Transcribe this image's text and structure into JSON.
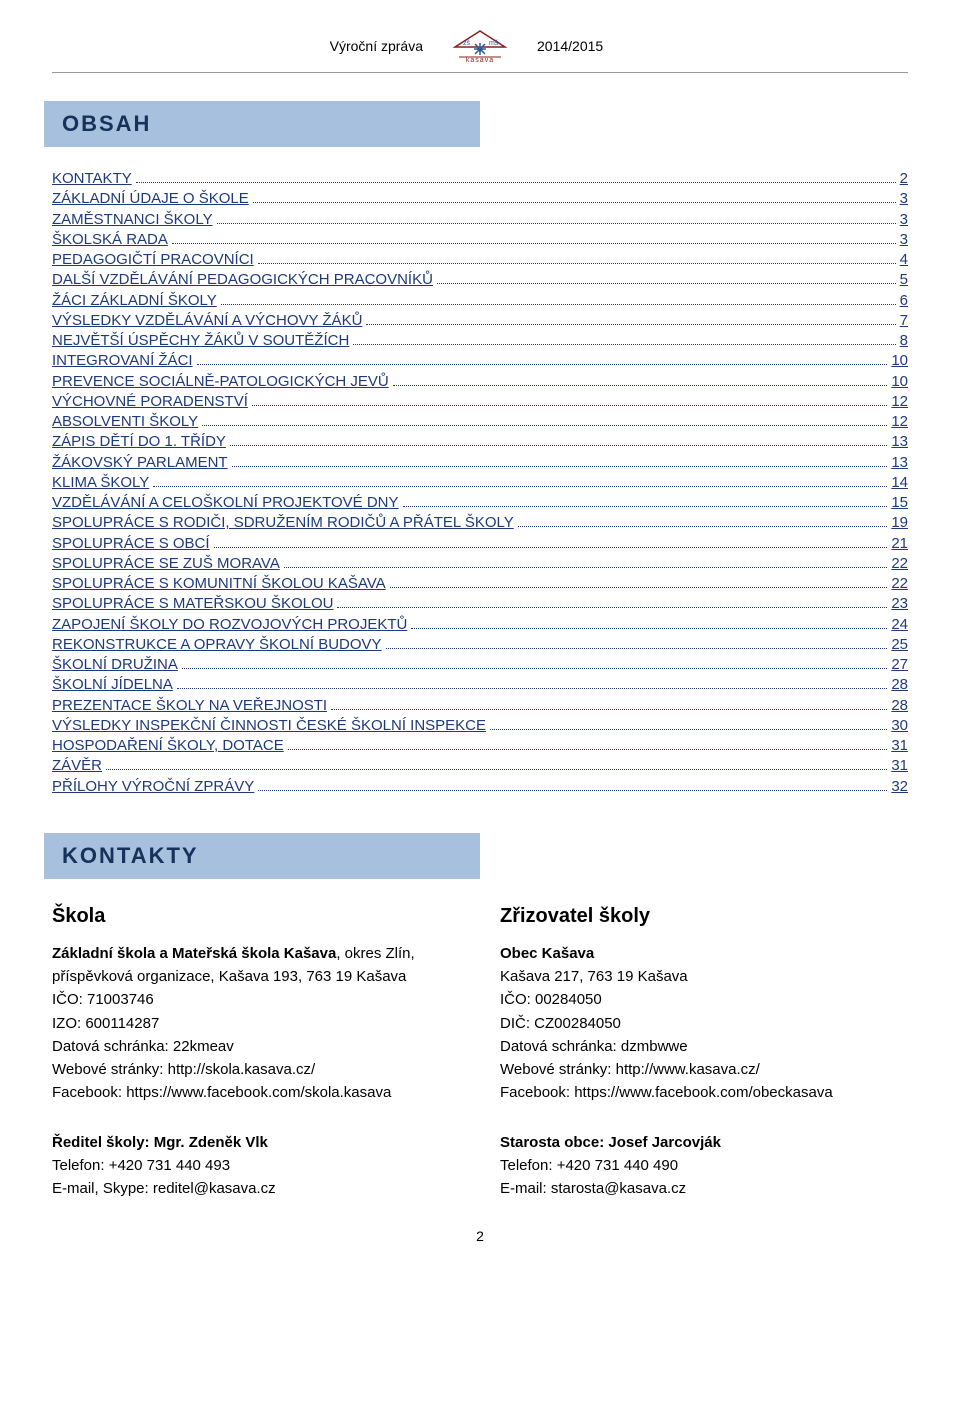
{
  "header": {
    "left": "Výroční zpráva",
    "right": "2014/2015",
    "logo_top": "zš ✶ mš",
    "logo_bottom": "kašava"
  },
  "sections": {
    "obsah_title": "OBSAH",
    "kontakty_title": "KONTAKTY"
  },
  "toc": [
    {
      "label": "KONTAKTY",
      "page": "2"
    },
    {
      "label": "ZÁKLADNÍ ÚDAJE O ŠKOLE",
      "page": "3"
    },
    {
      "label": "ZAMĚSTNANCI ŠKOLY",
      "page": "3"
    },
    {
      "label": "ŠKOLSKÁ RADA",
      "page": "3"
    },
    {
      "label": "PEDAGOGIČTÍ PRACOVNÍCI",
      "page": "4"
    },
    {
      "label": "DALŠÍ VZDĚLÁVÁNÍ PEDAGOGICKÝCH PRACOVNÍKŮ",
      "page": "5"
    },
    {
      "label": "ŽÁCI ZÁKLADNÍ ŠKOLY",
      "page": "6"
    },
    {
      "label": "VÝSLEDKY VZDĚLÁVÁNÍ A VÝCHOVY ŽÁKŮ",
      "page": "7"
    },
    {
      "label": "NEJVĚTŠÍ ÚSPĚCHY ŽÁKŮ V SOUTĚŽÍCH",
      "page": "8"
    },
    {
      "label": "INTEGROVANÍ ŽÁCI",
      "page": "10"
    },
    {
      "label": "PREVENCE SOCIÁLNĚ-PATOLOGICKÝCH JEVŮ",
      "page": "10"
    },
    {
      "label": "VÝCHOVNÉ PORADENSTVÍ",
      "page": "12"
    },
    {
      "label": "ABSOLVENTI ŠKOLY",
      "page": "12"
    },
    {
      "label": "ZÁPIS DĚTÍ DO 1. TŘÍDY",
      "page": "13"
    },
    {
      "label": "ŽÁKOVSKÝ PARLAMENT",
      "page": "13"
    },
    {
      "label": "KLIMA ŠKOLY",
      "page": "14"
    },
    {
      "label": "VZDĚLÁVÁNÍ A CELOŠKOLNÍ PROJEKTOVÉ DNY",
      "page": "15"
    },
    {
      "label": "SPOLUPRÁCE S RODIČI, SDRUŽENÍM RODIČŮ A PŘÁTEL ŠKOLY",
      "page": "19"
    },
    {
      "label": "SPOLUPRÁCE S OBCÍ",
      "page": "21"
    },
    {
      "label": "SPOLUPRÁCE SE ZUŠ MORAVA",
      "page": "22"
    },
    {
      "label": "SPOLUPRÁCE S KOMUNITNÍ ŠKOLOU KAŠAVA",
      "page": "22"
    },
    {
      "label": "SPOLUPRÁCE S MATEŘSKOU ŠKOLOU",
      "page": "23"
    },
    {
      "label": "ZAPOJENÍ ŠKOLY DO ROZVOJOVÝCH PROJEKTŮ",
      "page": "24"
    },
    {
      "label": "REKONSTRUKCE A OPRAVY ŠKOLNÍ BUDOVY",
      "page": "25"
    },
    {
      "label": "ŠKOLNÍ DRUŽINA",
      "page": "27"
    },
    {
      "label": "ŠKOLNÍ JÍDELNA",
      "page": "28"
    },
    {
      "label": "PREZENTACE ŠKOLY NA VEŘEJNOSTI",
      "page": "28"
    },
    {
      "label": "VÝSLEDKY INSPEKČNÍ ČINNOSTI ČESKÉ ŠKOLNÍ INSPEKCE",
      "page": "30"
    },
    {
      "label": "HOSPODAŘENÍ ŠKOLY, DOTACE",
      "page": "31"
    },
    {
      "label": "ZÁVĚR",
      "page": "31"
    },
    {
      "label": "PŘÍLOHY VÝROČNÍ ZPRÁVY",
      "page": "32"
    }
  ],
  "kontakt": {
    "skola": {
      "heading": "Škola",
      "name": "Základní škola a Mateřská škola Kašava",
      "name_suffix": ", okres Zlín,",
      "org": "příspěvková organizace, Kašava 193, 763 19 Kašava",
      "ico": "IČO: 71003746",
      "izo": "IZO: 600114287",
      "ds": "Datová schránka: 22kmeav",
      "web": "Webové stránky: http://skola.kasava.cz/",
      "fb": "Facebook: https://www.facebook.com/skola.kasava",
      "reditel_label": "Ředitel školy: Mgr. Zdeněk Vlk",
      "tel": "Telefon: +420 731 440 493",
      "email": "E-mail, Skype: reditel@kasava.cz"
    },
    "zrizovatel": {
      "heading": "Zřizovatel školy",
      "name": "Obec Kašava",
      "addr": "Kašava 217, 763 19 Kašava",
      "ico": "IČO: 00284050",
      "dic": "DIČ: CZ00284050",
      "ds": "Datová schránka: dzmbwwe",
      "web": "Webové stránky: http://www.kasava.cz/",
      "fb": "Facebook: https://www.facebook.com/obeckasava",
      "starosta_label": "Starosta obce: Josef Jarcovják",
      "tel": "Telefon: +420 731 440 490",
      "email": "E-mail: starosta@kasava.cz"
    }
  },
  "page_number": "2",
  "colors": {
    "bar_bg": "#a7c0de",
    "bar_text": "#17325a",
    "link": "#1f3a7a"
  }
}
